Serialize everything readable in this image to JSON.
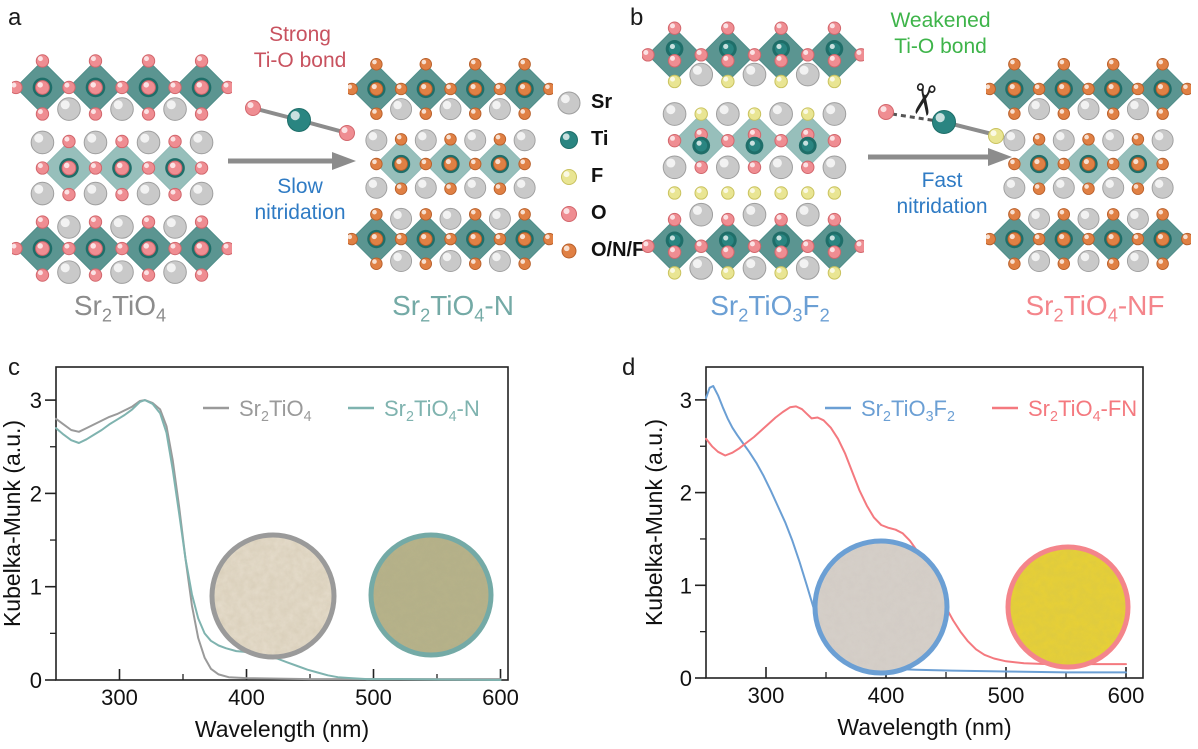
{
  "figure": {
    "panels": {
      "a": {
        "letter": "a",
        "bond_text": [
          "Strong",
          "Ti-O bond"
        ],
        "bond_text_color": "#c8525f",
        "process_text": [
          "Slow",
          "nitridation"
        ],
        "process_text_color": "#2f7bc4",
        "reactant": {
          "formula": "Sr_2_TiO_4_",
          "color": "#8c8c8c"
        },
        "product": {
          "formula": "Sr_2_TiO_4_-N",
          "color": "#74aaa6"
        }
      },
      "b": {
        "letter": "b",
        "bond_text": [
          "Weakened",
          "Ti-O bond"
        ],
        "bond_text_color": "#3eb44a",
        "process_text": [
          "Fast",
          "nitridation"
        ],
        "process_text_color": "#2f7bc4",
        "reactant": {
          "formula": "Sr_2_TiO_3_F_2_",
          "color": "#6b9fd4"
        },
        "product": {
          "formula": "Sr_2_TiO_4_-NF",
          "color": "#f4858b"
        }
      },
      "c": {
        "letter": "c"
      },
      "d": {
        "letter": "d"
      }
    },
    "atom_legend": [
      {
        "symbol": "Sr",
        "color": "#c9c9c9",
        "stroke": "#9e9e9e",
        "r": 11
      },
      {
        "symbol": "Ti",
        "color": "#2a8581",
        "stroke": "#1f6e69",
        "r": 8.5
      },
      {
        "symbol": "F",
        "color": "#e9e593",
        "stroke": "#c9c25e",
        "r": 7.5
      },
      {
        "symbol": "O",
        "color": "#ef8d92",
        "stroke": "#d2666c",
        "r": 7.5
      },
      {
        "symbol": "O/N/F",
        "color": "#e08044",
        "stroke": "#b85f2a",
        "r": 7
      }
    ],
    "structure_colors": {
      "octahedron": "#4f8d89",
      "octahedron_light": "#8fbab6",
      "ti_ring": "#1f6e69",
      "bond_gray": "#8c8c8c",
      "arrow_gray": "#8c8c8c"
    },
    "icons": {
      "scissors": "✂"
    }
  },
  "chart_data": [
    {
      "panel": "c",
      "type": "line",
      "xlabel": "Wavelength (nm)",
      "ylabel": "Kubelka-Munk (a.u.)",
      "xlim": [
        250,
        600
      ],
      "ylim": [
        0,
        3.35
      ],
      "xticks": [
        300,
        400,
        500,
        600
      ],
      "xminor": [
        350,
        450,
        550
      ],
      "yticks": [
        0,
        1,
        2,
        3
      ],
      "yminor": [
        0.5,
        1.5,
        2.5
      ],
      "grid": false,
      "legend_position": "top-center-inside",
      "legend": [
        {
          "label": "Sr_2_TiO_4_",
          "color": "#9a9a9a"
        },
        {
          "label": "Sr_2_TiO_4_-N",
          "color": "#7fb3af"
        }
      ],
      "series": [
        {
          "name": "Sr2TiO4",
          "color": "#9a9a9a",
          "points": [
            [
              250,
              2.8
            ],
            [
              256,
              2.74
            ],
            [
              262,
              2.68
            ],
            [
              268,
              2.66
            ],
            [
              274,
              2.7
            ],
            [
              280,
              2.74
            ],
            [
              286,
              2.78
            ],
            [
              292,
              2.82
            ],
            [
              298,
              2.85
            ],
            [
              304,
              2.89
            ],
            [
              310,
              2.93
            ],
            [
              316,
              2.99
            ],
            [
              320,
              3.0
            ],
            [
              326,
              2.97
            ],
            [
              332,
              2.9
            ],
            [
              337,
              2.72
            ],
            [
              342,
              2.35
            ],
            [
              347,
              1.85
            ],
            [
              352,
              1.3
            ],
            [
              357,
              0.8
            ],
            [
              362,
              0.45
            ],
            [
              367,
              0.24
            ],
            [
              372,
              0.12
            ],
            [
              378,
              0.06
            ],
            [
              386,
              0.03
            ],
            [
              400,
              0.02
            ],
            [
              450,
              0.01
            ],
            [
              600,
              0.01
            ]
          ]
        },
        {
          "name": "Sr2TiO4-N",
          "color": "#7fb3af",
          "points": [
            [
              250,
              2.7
            ],
            [
              256,
              2.63
            ],
            [
              262,
              2.57
            ],
            [
              268,
              2.54
            ],
            [
              274,
              2.58
            ],
            [
              280,
              2.63
            ],
            [
              286,
              2.68
            ],
            [
              292,
              2.74
            ],
            [
              298,
              2.79
            ],
            [
              304,
              2.84
            ],
            [
              310,
              2.9
            ],
            [
              316,
              2.98
            ],
            [
              320,
              3.0
            ],
            [
              326,
              2.96
            ],
            [
              332,
              2.86
            ],
            [
              337,
              2.65
            ],
            [
              342,
              2.25
            ],
            [
              347,
              1.78
            ],
            [
              352,
              1.3
            ],
            [
              357,
              0.92
            ],
            [
              362,
              0.66
            ],
            [
              367,
              0.5
            ],
            [
              372,
              0.42
            ],
            [
              378,
              0.37
            ],
            [
              384,
              0.34
            ],
            [
              392,
              0.31
            ],
            [
              400,
              0.3
            ],
            [
              408,
              0.28
            ],
            [
              416,
              0.26
            ],
            [
              424,
              0.23
            ],
            [
              432,
              0.19
            ],
            [
              440,
              0.15
            ],
            [
              448,
              0.11
            ],
            [
              456,
              0.08
            ],
            [
              464,
              0.05
            ],
            [
              472,
              0.03
            ],
            [
              482,
              0.02
            ],
            [
              495,
              0.01
            ],
            [
              520,
              0.01
            ],
            [
              600,
              0.0
            ]
          ]
        }
      ],
      "insets": [
        {
          "border_color": "#9a9a9a",
          "powder_color": "#e9e0d0",
          "speckle_color": "#9c8a67"
        },
        {
          "border_color": "#74aaa6",
          "powder_color": "#b9b48b",
          "speckle_color": "#6e6b3f"
        }
      ]
    },
    {
      "panel": "d",
      "type": "line",
      "xlabel": "Wavelength (nm)",
      "ylabel": "Kubelka-Munk (a.u.)",
      "xlim": [
        250,
        600
      ],
      "ylim": [
        0,
        3.35
      ],
      "xticks": [
        300,
        400,
        500,
        600
      ],
      "xminor": [
        350,
        450,
        550
      ],
      "yticks": [
        0,
        1,
        2,
        3
      ],
      "yminor": [
        0.5,
        1.5,
        2.5
      ],
      "grid": false,
      "legend_position": "top-center-inside",
      "legend": [
        {
          "label": "Sr_2_TiO_3_F_2_",
          "color": "#6b9fd4"
        },
        {
          "label": "Sr_2_TiO_4_-FN",
          "color": "#f4797f"
        }
      ],
      "series": [
        {
          "name": "Sr2TiO3F2",
          "color": "#6b9fd4",
          "points": [
            [
              250,
              3.02
            ],
            [
              253,
              3.13
            ],
            [
              256,
              3.15
            ],
            [
              260,
              3.05
            ],
            [
              264,
              2.92
            ],
            [
              268,
              2.8
            ],
            [
              272,
              2.7
            ],
            [
              276,
              2.62
            ],
            [
              281,
              2.53
            ],
            [
              286,
              2.44
            ],
            [
              292,
              2.32
            ],
            [
              298,
              2.18
            ],
            [
              304,
              2.02
            ],
            [
              310,
              1.85
            ],
            [
              316,
              1.68
            ],
            [
              322,
              1.48
            ],
            [
              328,
              1.25
            ],
            [
              334,
              1.0
            ],
            [
              340,
              0.74
            ],
            [
              346,
              0.5
            ],
            [
              352,
              0.33
            ],
            [
              358,
              0.24
            ],
            [
              365,
              0.18
            ],
            [
              374,
              0.14
            ],
            [
              385,
              0.12
            ],
            [
              400,
              0.1
            ],
            [
              425,
              0.09
            ],
            [
              455,
              0.08
            ],
            [
              500,
              0.07
            ],
            [
              550,
              0.06
            ],
            [
              600,
              0.06
            ]
          ]
        },
        {
          "name": "Sr2TiO4-FN",
          "color": "#f4797f",
          "points": [
            [
              250,
              2.58
            ],
            [
              255,
              2.5
            ],
            [
              260,
              2.44
            ],
            [
              266,
              2.4
            ],
            [
              272,
              2.43
            ],
            [
              278,
              2.48
            ],
            [
              284,
              2.54
            ],
            [
              290,
              2.6
            ],
            [
              296,
              2.67
            ],
            [
              302,
              2.74
            ],
            [
              308,
              2.81
            ],
            [
              314,
              2.87
            ],
            [
              320,
              2.92
            ],
            [
              325,
              2.93
            ],
            [
              330,
              2.9
            ],
            [
              334,
              2.85
            ],
            [
              338,
              2.8
            ],
            [
              343,
              2.81
            ],
            [
              348,
              2.78
            ],
            [
              354,
              2.7
            ],
            [
              360,
              2.58
            ],
            [
              366,
              2.42
            ],
            [
              372,
              2.22
            ],
            [
              378,
              2.02
            ],
            [
              384,
              1.86
            ],
            [
              390,
              1.73
            ],
            [
              396,
              1.65
            ],
            [
              402,
              1.62
            ],
            [
              408,
              1.6
            ],
            [
              414,
              1.56
            ],
            [
              420,
              1.48
            ],
            [
              426,
              1.37
            ],
            [
              432,
              1.24
            ],
            [
              438,
              1.08
            ],
            [
              444,
              0.92
            ],
            [
              450,
              0.76
            ],
            [
              456,
              0.62
            ],
            [
              462,
              0.5
            ],
            [
              468,
              0.4
            ],
            [
              475,
              0.31
            ],
            [
              482,
              0.25
            ],
            [
              490,
              0.21
            ],
            [
              500,
              0.18
            ],
            [
              515,
              0.16
            ],
            [
              535,
              0.15
            ],
            [
              560,
              0.15
            ],
            [
              600,
              0.15
            ]
          ]
        }
      ],
      "insets": [
        {
          "border_color": "#6b9fd4",
          "powder_color": "#d8d2cb",
          "speckle_color": "#9d9289"
        },
        {
          "border_color": "#f4858b",
          "powder_color": "#ecd334",
          "speckle_color": "#a78e12"
        }
      ]
    }
  ]
}
